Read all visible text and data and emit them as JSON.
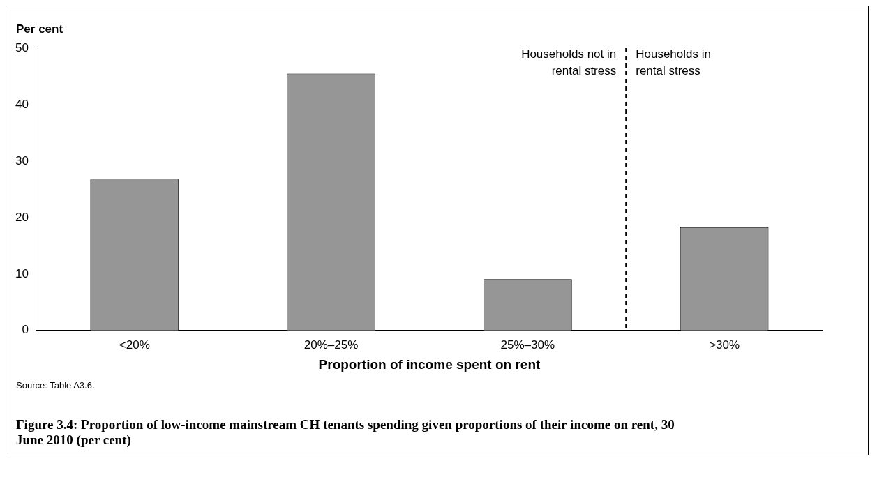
{
  "chart_data": {
    "type": "bar",
    "title": "Figure 3.4: Proportion of low-income mainstream CH tenants spending given proportions of their income on rent, 30 June 2010 (per cent)",
    "xlabel": "Proportion of income spent on rent",
    "ylabel": "Per cent",
    "categories": [
      "<20%",
      "20%–25%",
      "25%–30%",
      ">30%"
    ],
    "values": [
      26.9,
      45.5,
      9.1,
      18.3
    ],
    "color": "#969696",
    "ylim": [
      0,
      50
    ],
    "yticks": [
      0,
      10,
      20,
      30,
      40,
      50
    ],
    "grid": false,
    "legend": false,
    "annotations": [
      "Households not in rental stress",
      "Households in rental stress",
      "Source: Table A3.6."
    ]
  }
}
